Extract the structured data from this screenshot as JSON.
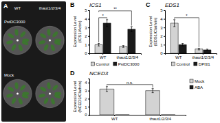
{
  "chart_data": [
    {
      "type": "image",
      "categories": [
        "WT",
        "thaut1/2/3/4"
      ],
      "rows": [
        "PstDC3000",
        "Mock"
      ],
      "annotations": [
        {
          "text": "A"
        }
      ]
    },
    {
      "type": "bar",
      "title": "ICS1",
      "ylabel": "Expression Level\n(ICS1/Actin)",
      "categories": [
        "WT",
        "thaut1/2/3/4"
      ],
      "series": [
        {
          "name": "Control",
          "color": "#d3d3d3",
          "values": [
            1.0,
            0.8
          ],
          "errors": [
            0.15,
            0.1
          ]
        },
        {
          "name": "PstDC3000",
          "color": "#1a1a1a",
          "values": [
            3.5,
            2.8
          ],
          "errors": [
            0.4,
            0.3
          ]
        }
      ],
      "ylim": [
        0,
        5
      ],
      "yticks": [
        0,
        1,
        2,
        3,
        4,
        5
      ],
      "legend": "bottom",
      "annotations": [
        {
          "text": "B"
        },
        {
          "text": "**",
          "from": [
            0,
            0
          ],
          "to": [
            1,
            1
          ]
        },
        {
          "text": "*",
          "from": [
            0,
            0
          ],
          "to": [
            1,
            0
          ]
        }
      ]
    },
    {
      "type": "bar",
      "title": "EDS1",
      "ylabel": "Expression Level\n(EDS1/Clathrin)",
      "categories": [
        "WT",
        "thaut1/2/3/4"
      ],
      "series": [
        {
          "name": "Control",
          "color": "#d3d3d3",
          "values": [
            3.5,
            0.5
          ],
          "errors": [
            0.4,
            0.1
          ]
        },
        {
          "name": "DPI31",
          "color": "#1a1a1a",
          "values": [
            1.0,
            0.4
          ],
          "errors": [
            0.15,
            0.08
          ]
        }
      ],
      "ylim": [
        0,
        5
      ],
      "yticks": [
        0,
        1,
        2,
        3,
        4,
        5
      ],
      "legend": "bottom",
      "annotations": [
        {
          "text": "C"
        },
        {
          "text": "*",
          "from": [
            0,
            0
          ],
          "to": [
            0,
            1
          ]
        }
      ]
    },
    {
      "type": "bar",
      "title": "NCED3",
      "ylabel": "Expression Level\n(NCED3/Clathrin)",
      "categories": [
        "WT",
        "thaut1/2/3/4"
      ],
      "series": [
        {
          "name": "Mock",
          "color": "#d3d3d3",
          "values": [
            3.2,
            3.0
          ],
          "errors": [
            0.3,
            0.25
          ]
        },
        {
          "name": "ABA",
          "color": "#1a1a1a",
          "values": [
            0.0,
            0.0
          ]
        }
      ],
      "ylim": [
        0,
        4.5
      ],
      "yticks": [
        0,
        1,
        2,
        3,
        4
      ],
      "legend": "right",
      "annotations": [
        {
          "text": "D"
        },
        {
          "text": "n.s.",
          "from": [
            0,
            0
          ],
          "to": [
            0,
            1
          ]
        }
      ]
    }
  ]
}
